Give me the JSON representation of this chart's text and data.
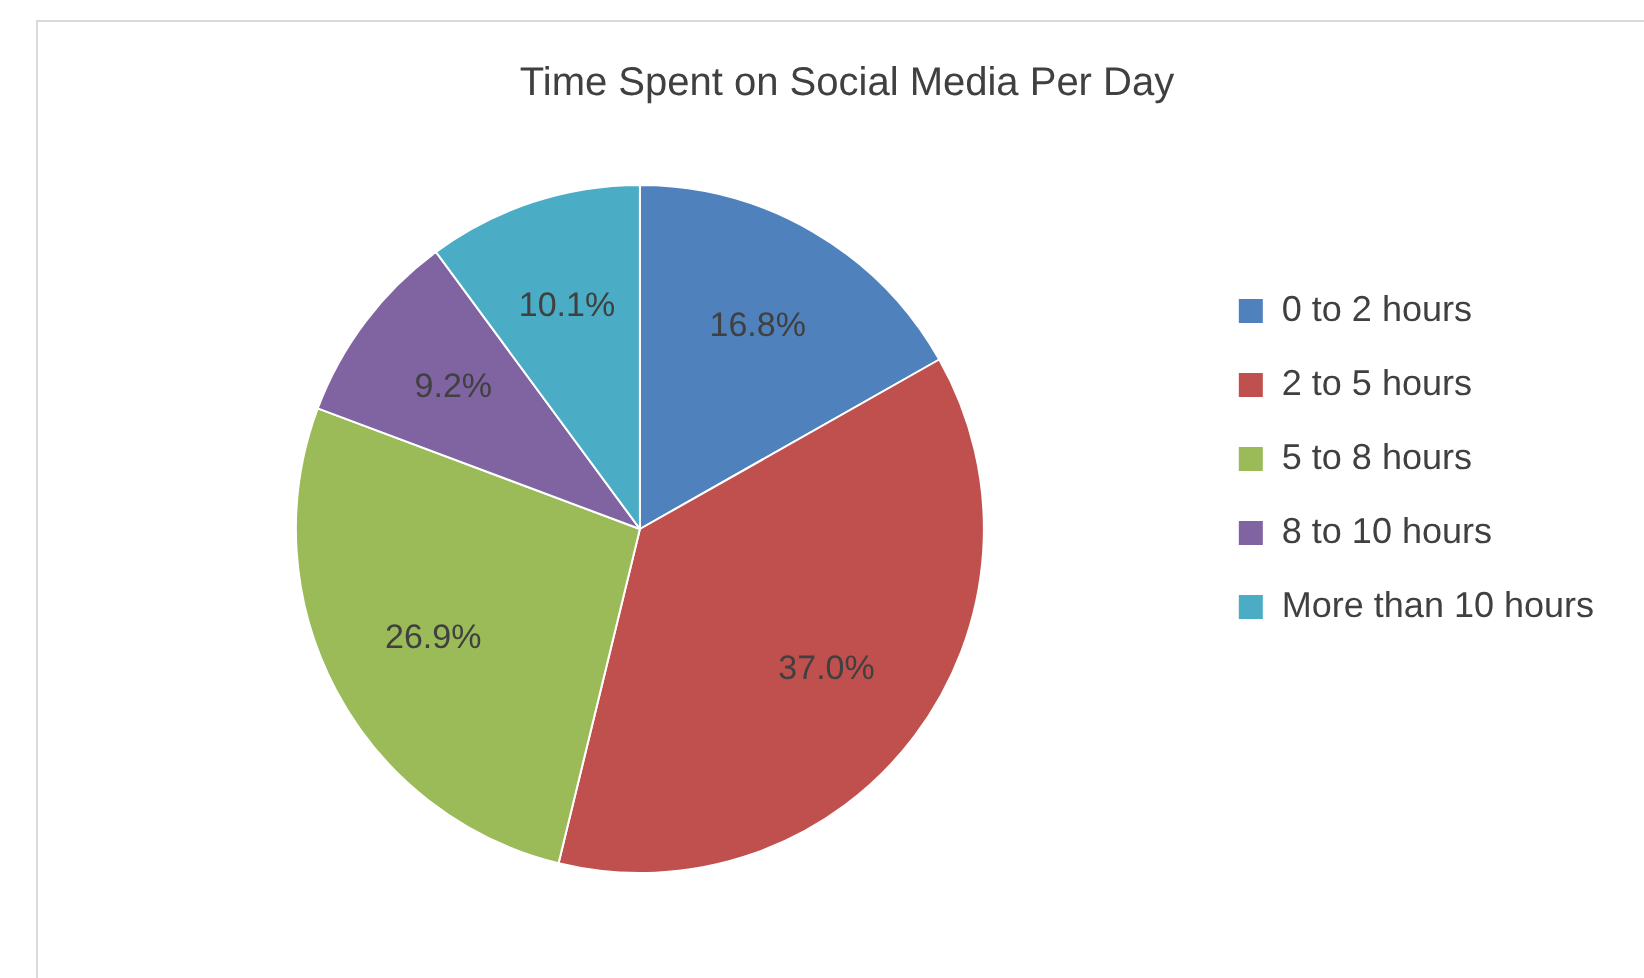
{
  "chart_data": {
    "type": "pie",
    "title": "Time Spent on Social Media Per Day",
    "categories": [
      "0 to 2 hours",
      "2 to 5 hours",
      "5 to 8 hours",
      "8 to 10 hours",
      "More than 10 hours"
    ],
    "values": [
      16.8,
      37.0,
      26.9,
      9.2,
      10.1
    ],
    "value_labels": [
      "16.8%",
      "37.0%",
      "26.9%",
      "9.2%",
      "10.1%"
    ],
    "colors": [
      "#4f81bd",
      "#c0504d",
      "#9bbb59",
      "#8064a2",
      "#4bacc6"
    ],
    "legend": "right"
  }
}
